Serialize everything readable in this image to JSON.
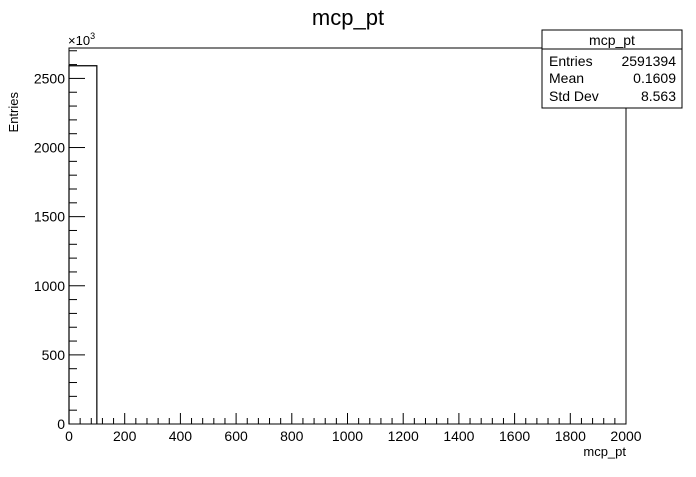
{
  "chart_data": {
    "type": "bar",
    "title": "mcp_pt",
    "xlabel": "mcp_pt",
    "ylabel": "Entries",
    "xlim": [
      0,
      2000
    ],
    "ylim": [
      0,
      2720
    ],
    "y_multiplier_label": "×10",
    "y_multiplier_exp": "3",
    "x_ticks": [
      0,
      200,
      400,
      600,
      800,
      1000,
      1200,
      1400,
      1600,
      1800,
      2000
    ],
    "y_ticks": [
      0,
      500,
      1000,
      1500,
      2000,
      2500
    ],
    "bins": [
      {
        "x0": 0,
        "x1": 100,
        "value": 2591.394
      }
    ],
    "grid": false,
    "legend": "none",
    "line_color": "#000000"
  },
  "stats_box": {
    "title": "mcp_pt",
    "rows": [
      {
        "label": "Entries",
        "value": "2591394"
      },
      {
        "label": "Mean",
        "value": "0.1609"
      },
      {
        "label": "Std Dev",
        "value": "8.563"
      }
    ]
  }
}
